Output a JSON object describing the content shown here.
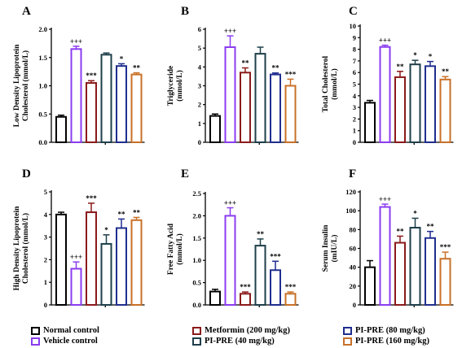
{
  "chart_data": [
    {
      "type": "bar",
      "panel": "A",
      "ylabel": [
        "Low Density Lipoprotein",
        "Cholesterol (mmol/L)"
      ],
      "ylim": [
        0,
        2.0
      ],
      "yticks": [
        "0.0",
        "0.5",
        "1.0",
        "1.5",
        "2.0"
      ],
      "series": [
        "Normal control",
        "Vehicle control",
        "Metformin (200 mg/kg)",
        "PI-PRE (40 mg/kg)",
        "PI-PRE (80 mg/kg)",
        "PI-PRE (160 mg/kg)"
      ],
      "values": [
        0.45,
        1.65,
        1.05,
        1.55,
        1.35,
        1.2
      ],
      "errors": [
        0.03,
        0.05,
        0.04,
        0.03,
        0.04,
        0.03
      ],
      "labels": [
        "",
        "+++",
        "***",
        "",
        "*",
        "**"
      ]
    },
    {
      "type": "bar",
      "panel": "B",
      "ylabel": [
        "Triglyceride",
        "(mmol/L)"
      ],
      "ylim": [
        0,
        6
      ],
      "yticks": [
        "0",
        "1",
        "2",
        "3",
        "4",
        "5",
        "6"
      ],
      "series": [
        "Normal control",
        "Vehicle control",
        "Metformin (200 mg/kg)",
        "PI-PRE (40 mg/kg)",
        "PI-PRE (80 mg/kg)",
        "PI-PRE (160 mg/kg)"
      ],
      "values": [
        1.4,
        5.05,
        3.7,
        4.7,
        3.6,
        3.0
      ],
      "errors": [
        0.1,
        0.6,
        0.25,
        0.35,
        0.08,
        0.35
      ],
      "labels": [
        "",
        "+++",
        "**",
        "",
        "**",
        "***"
      ]
    },
    {
      "type": "bar",
      "panel": "C",
      "ylabel": [
        "Total Cholesterol",
        "(mmol/L)"
      ],
      "ylim": [
        0,
        10
      ],
      "yticks": [
        "0",
        "1",
        "2",
        "3",
        "4",
        "5",
        "6",
        "7",
        "8",
        "9",
        "10"
      ],
      "series": [
        "Normal control",
        "Vehicle control",
        "Metformin (200 mg/kg)",
        "PI-PRE (40 mg/kg)",
        "PI-PRE (80 mg/kg)",
        "PI-PRE (160 mg/kg)"
      ],
      "values": [
        3.4,
        8.2,
        5.6,
        6.7,
        6.55,
        5.4
      ],
      "errors": [
        0.2,
        0.15,
        0.5,
        0.35,
        0.4,
        0.25
      ],
      "labels": [
        "",
        "+++",
        "**",
        "*",
        "*",
        "**"
      ]
    },
    {
      "type": "bar",
      "panel": "D",
      "ylabel": [
        "High Density Lipoprotein",
        "Cholesterol (mmol/L)"
      ],
      "ylim": [
        0,
        5
      ],
      "yticks": [
        "0",
        "1",
        "2",
        "3",
        "4",
        "5"
      ],
      "series": [
        "Normal control",
        "Vehicle control",
        "Metformin (200 mg/kg)",
        "PI-PRE (40 mg/kg)",
        "PI-PRE (80 mg/kg)",
        "PI-PRE (160 mg/kg)"
      ],
      "values": [
        4.0,
        1.6,
        4.1,
        2.7,
        3.4,
        3.75
      ],
      "errors": [
        0.1,
        0.3,
        0.4,
        0.4,
        0.4,
        0.12
      ],
      "labels": [
        "",
        "+++",
        "***",
        "*",
        "**",
        "**"
      ]
    },
    {
      "type": "bar",
      "panel": "E",
      "ylabel": [
        "Free Fatty Acid",
        "(mmol/L)"
      ],
      "ylim": [
        0,
        2.5
      ],
      "yticks": [
        "0.0",
        "0.5",
        "1.0",
        "1.5",
        "2.0",
        "2.5"
      ],
      "series": [
        "Normal control",
        "Vehicle control",
        "Metformin (200 mg/kg)",
        "PI-PRE (40 mg/kg)",
        "PI-PRE (80 mg/kg)",
        "PI-PRE (160 mg/kg)"
      ],
      "values": [
        0.3,
        2.0,
        0.25,
        1.33,
        0.78,
        0.25
      ],
      "errors": [
        0.05,
        0.18,
        0.04,
        0.15,
        0.2,
        0.04
      ],
      "labels": [
        "",
        "+++",
        "***",
        "**",
        "***",
        "***"
      ]
    },
    {
      "type": "bar",
      "panel": "F",
      "ylabel": [
        "Serum Insulin",
        "(mIU/L)"
      ],
      "ylim": [
        0,
        120
      ],
      "yticks": [
        "0",
        "20",
        "40",
        "60",
        "80",
        "100",
        "120"
      ],
      "series": [
        "Normal control",
        "Vehicle control",
        "Metformin (200 mg/kg)",
        "PI-PRE (40 mg/kg)",
        "PI-PRE (80 mg/kg)",
        "PI-PRE (160 mg/kg)"
      ],
      "values": [
        40,
        104,
        66,
        82,
        71,
        49
      ],
      "errors": [
        7,
        3,
        7,
        10,
        7,
        7
      ],
      "labels": [
        "",
        "+++",
        "**",
        "*",
        "**",
        "***"
      ]
    }
  ],
  "colors": [
    "#000000",
    "#8b3cf0",
    "#8b1a1a",
    "#1e3f4a",
    "#1f2e8f",
    "#c87028"
  ],
  "legend": [
    {
      "label": "Normal control",
      "color": "#000000"
    },
    {
      "label": "Vehicle control",
      "color": "#8b3cf0"
    },
    {
      "label": "Metformin (200 mg/kg)",
      "color": "#8b1a1a"
    },
    {
      "label": "PI-PRE (40 mg/kg)",
      "color": "#1e3f4a"
    },
    {
      "label": "PI-PRE (80 mg/kg)",
      "color": "#1f2e8f"
    },
    {
      "label": "PI-PRE (160 mg/kg)",
      "color": "#c87028"
    }
  ]
}
